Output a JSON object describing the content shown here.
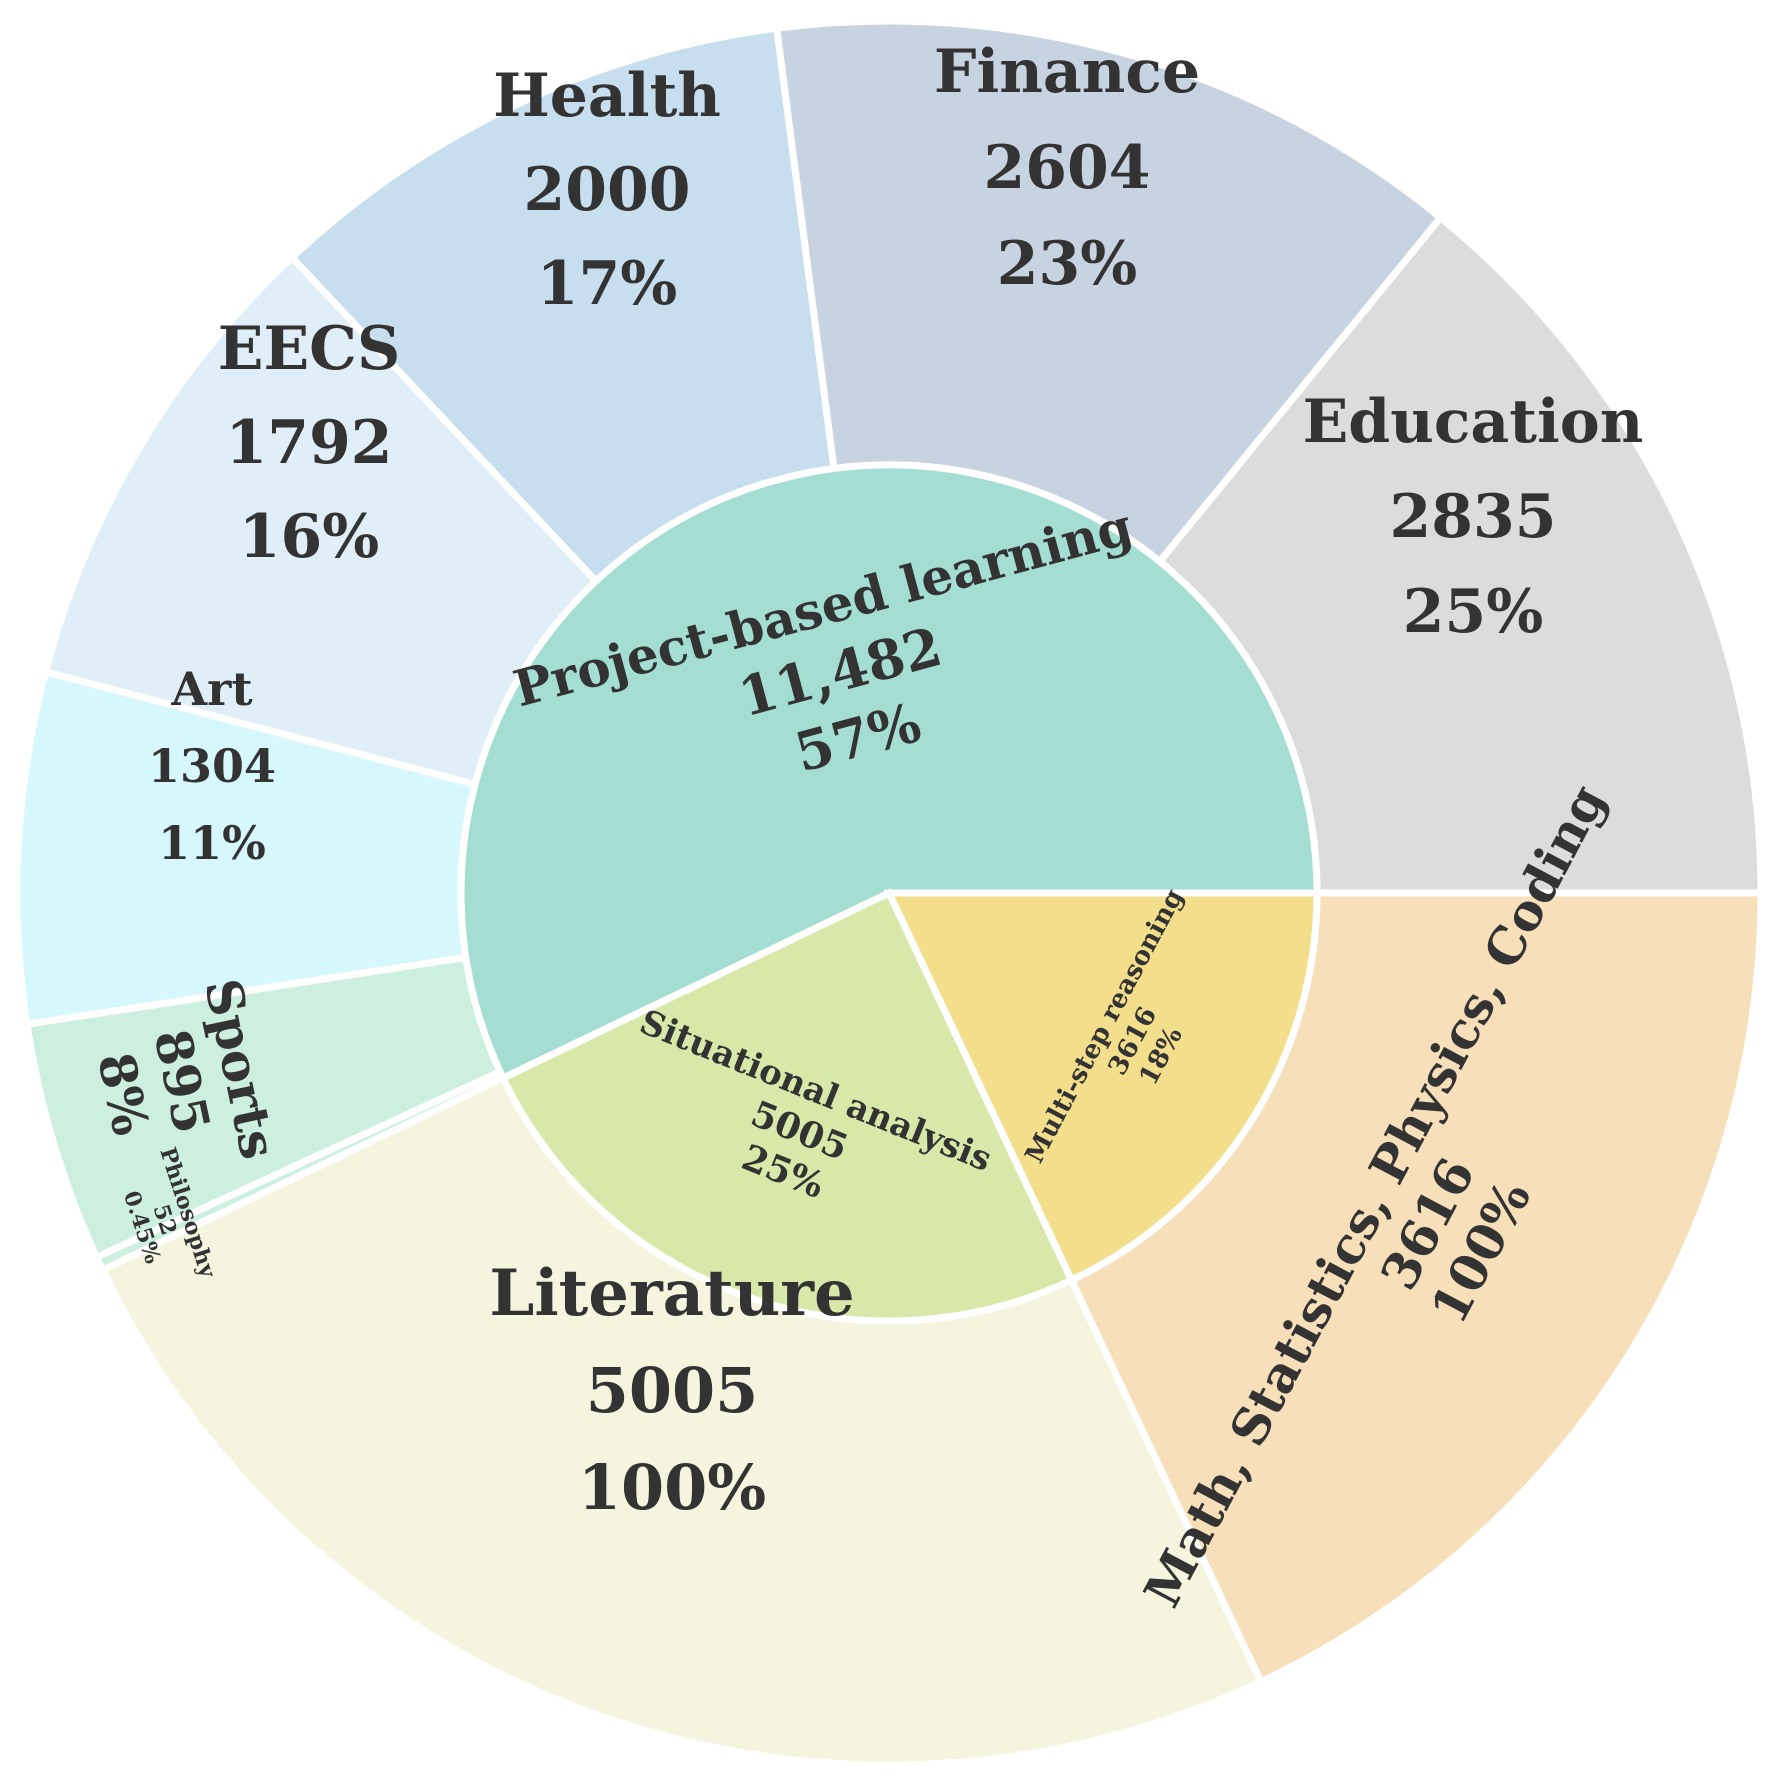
{
  "chart_data": {
    "type": "sunburst",
    "title": "",
    "inner": [
      {
        "name": "Project-based learning",
        "count": "11,482",
        "pct": "57%",
        "value": 11482,
        "color": "#a4ddd1"
      },
      {
        "name": "Multi-step reasoning",
        "count": "3616",
        "pct": "18%",
        "value": 3616,
        "color": "#f3de8c"
      },
      {
        "name": "Situational analysis",
        "count": "5005",
        "pct": "25%",
        "value": 5005,
        "color": "#d8e8a8"
      }
    ],
    "outer": [
      {
        "name": "Education",
        "count": "2835",
        "pct": "25%",
        "value": 2835,
        "parent": "Project-based learning",
        "color": "#dcdcdc"
      },
      {
        "name": "Finance",
        "count": "2604",
        "pct": "23%",
        "value": 2604,
        "parent": "Project-based learning",
        "color": "#c8d3e2"
      },
      {
        "name": "Health",
        "count": "2000",
        "pct": "17%",
        "value": 2000,
        "parent": "Project-based learning",
        "color": "#c6deed"
      },
      {
        "name": "EECS",
        "count": "1792",
        "pct": "16%",
        "value": 1792,
        "parent": "Project-based learning",
        "color": "#e0eef8"
      },
      {
        "name": "Art",
        "count": "1304",
        "pct": "11%",
        "value": 1304,
        "parent": "Project-based learning",
        "color": "#d6f7fb"
      },
      {
        "name": "Sports",
        "count": "895",
        "pct": "8%",
        "value": 895,
        "parent": "Project-based learning",
        "color": "#ccefdf"
      },
      {
        "name": "Philosophy",
        "count": "52",
        "pct": "0.45%",
        "value": 52,
        "parent": "Project-based learning",
        "color": "#ccefdf"
      },
      {
        "name": "Literature",
        "count": "5005",
        "pct": "100%",
        "value": 5005,
        "parent": "Situational analysis",
        "color": "#f5f5df"
      },
      {
        "name": "Math, Statistics, Physics, Coding",
        "count": "3616",
        "pct": "100%",
        "value": 3616,
        "parent": "Multi-step reasoning",
        "color": "#f6dfb9"
      }
    ]
  }
}
